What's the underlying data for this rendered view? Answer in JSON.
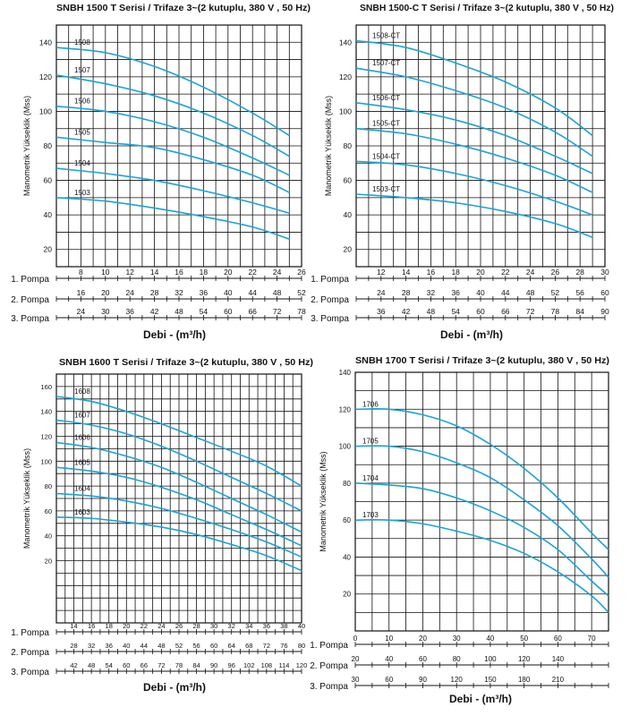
{
  "colors": {
    "curve": "#1aa3d6",
    "grid": "#111111",
    "text": "#111111"
  },
  "chart_data": [
    {
      "type": "line",
      "title": "SNBH 1500 T Serisi / Trifaze 3~(2 kutuplu, 380 V , 50 Hz)",
      "ylabel": "Manometrik Yükseklik (Mss)",
      "xlabel": "Debi - (m³/h)",
      "x_unit": "m³/h",
      "ylim": [
        10,
        150
      ],
      "y_ticks": [
        20,
        40,
        60,
        80,
        100,
        120,
        140
      ],
      "xlim": [
        6,
        26
      ],
      "grid": true,
      "pompa_labels": [
        "1. Pompa",
        "2. Pompa",
        "3. Pompa"
      ],
      "pompa_ticks": [
        [
          8,
          10,
          12,
          14,
          16,
          18,
          20,
          22,
          24,
          26
        ],
        [
          16,
          20,
          24,
          28,
          32,
          36,
          40,
          44,
          48,
          52
        ],
        [
          24,
          30,
          36,
          42,
          48,
          54,
          60,
          66,
          72,
          78
        ]
      ],
      "series": [
        {
          "name": "1508",
          "x": [
            6,
            10,
            14,
            18,
            22,
            25
          ],
          "y": [
            137,
            134,
            126,
            114,
            99,
            86
          ]
        },
        {
          "name": "1507",
          "x": [
            6,
            10,
            14,
            18,
            22,
            25
          ],
          "y": [
            121,
            116,
            109,
            99,
            86,
            74
          ]
        },
        {
          "name": "1506",
          "x": [
            6,
            10,
            14,
            18,
            22,
            25
          ],
          "y": [
            103,
            100,
            94,
            85,
            73,
            63
          ]
        },
        {
          "name": "1505",
          "x": [
            6,
            10,
            14,
            18,
            22,
            25
          ],
          "y": [
            85,
            82,
            79,
            72,
            63,
            53
          ]
        },
        {
          "name": "1504",
          "x": [
            6,
            10,
            14,
            18,
            22,
            25
          ],
          "y": [
            67,
            64,
            60,
            54,
            47,
            41
          ]
        },
        {
          "name": "1503",
          "x": [
            6,
            10,
            14,
            18,
            22,
            25
          ],
          "y": [
            50,
            48,
            44,
            39,
            33,
            26
          ]
        }
      ]
    },
    {
      "type": "line",
      "title": "SNBH 1500-C T Serisi / Trifaze 3~(2 kutuplu, 380 V , 50 Hz)",
      "ylabel": "Manometrik Yükseklik (Mss)",
      "xlabel": "Debi - (m³/h)",
      "x_unit": "m³/h",
      "ylim": [
        10,
        150
      ],
      "y_ticks": [
        20,
        40,
        60,
        80,
        100,
        120,
        140
      ],
      "xlim": [
        10,
        30
      ],
      "grid": true,
      "pompa_labels": [
        "1. Pompa",
        "2. Pompa",
        "3. Pompa"
      ],
      "pompa_ticks": [
        [
          12,
          14,
          16,
          18,
          20,
          22,
          24,
          26,
          28,
          30
        ],
        [
          24,
          28,
          32,
          36,
          40,
          44,
          48,
          52,
          56,
          60
        ],
        [
          36,
          42,
          48,
          54,
          60,
          66,
          72,
          78,
          84,
          90
        ]
      ],
      "series": [
        {
          "name": "1508-CT",
          "x": [
            10,
            14,
            18,
            22,
            26,
            29
          ],
          "y": [
            141,
            137,
            128,
            117,
            102,
            86
          ]
        },
        {
          "name": "1507-CT",
          "x": [
            10,
            14,
            18,
            22,
            26,
            29
          ],
          "y": [
            125,
            120,
            112,
            102,
            88,
            74
          ]
        },
        {
          "name": "1506-CT",
          "x": [
            10,
            14,
            18,
            22,
            26,
            29
          ],
          "y": [
            105,
            101,
            95,
            86,
            74,
            64
          ]
        },
        {
          "name": "1505-CT",
          "x": [
            10,
            14,
            18,
            22,
            26,
            29
          ],
          "y": [
            90,
            87,
            81,
            73,
            63,
            53
          ]
        },
        {
          "name": "1504-CT",
          "x": [
            10,
            14,
            18,
            22,
            26,
            29
          ],
          "y": [
            71,
            69,
            64,
            57,
            48,
            40
          ]
        },
        {
          "name": "1503-CT",
          "x": [
            10,
            14,
            18,
            22,
            26,
            29
          ],
          "y": [
            52,
            50,
            47,
            42,
            35,
            27
          ]
        }
      ]
    },
    {
      "type": "line",
      "title": "SNBH 1600 T Serisi / Trifaze 3~(2 kutuplu, 380 V , 50 Hz)",
      "ylabel": "Manometrik Yükseklik (Mss)",
      "xlabel": "Debi - (m³/h)",
      "x_unit": "m³/h",
      "ylim": [
        -30,
        170
      ],
      "y_ticks": [
        20,
        40,
        60,
        80,
        100,
        120,
        140,
        160
      ],
      "xlim": [
        12,
        40
      ],
      "grid": true,
      "pompa_labels": [
        "1. Pompa",
        "2. Pompa",
        "3. Pompa"
      ],
      "pompa_ticks": [
        [
          14,
          16,
          18,
          20,
          22,
          24,
          26,
          28,
          30,
          32,
          34,
          36,
          38,
          40
        ],
        [
          28,
          32,
          36,
          40,
          44,
          48,
          52,
          56,
          60,
          64,
          68,
          72,
          76,
          80
        ],
        [
          42,
          48,
          54,
          60,
          66,
          72,
          78,
          84,
          90,
          96,
          102,
          108,
          114,
          120
        ]
      ],
      "series": [
        {
          "name": "1608",
          "x": [
            12,
            16,
            20,
            24,
            28,
            32,
            36,
            40
          ],
          "y": [
            152,
            148,
            140,
            130,
            119,
            108,
            96,
            80
          ]
        },
        {
          "name": "1607",
          "x": [
            12,
            16,
            20,
            24,
            28,
            32,
            36,
            40
          ],
          "y": [
            133,
            129,
            122,
            112,
            100,
            87,
            74,
            60
          ]
        },
        {
          "name": "1606",
          "x": [
            12,
            16,
            20,
            24,
            28,
            32,
            36,
            40
          ],
          "y": [
            115,
            111,
            104,
            95,
            83,
            70,
            57,
            43
          ]
        },
        {
          "name": "1605",
          "x": [
            12,
            16,
            20,
            24,
            28,
            32,
            36,
            40
          ],
          "y": [
            95,
            92,
            87,
            79,
            69,
            57,
            45,
            32
          ]
        },
        {
          "name": "1604",
          "x": [
            12,
            16,
            20,
            24,
            28,
            32,
            36,
            40
          ],
          "y": [
            74,
            72,
            68,
            62,
            54,
            45,
            35,
            23
          ]
        },
        {
          "name": "1603",
          "x": [
            12,
            16,
            20,
            24,
            28,
            32,
            36,
            40
          ],
          "y": [
            55,
            54,
            51,
            47,
            41,
            33,
            24,
            12
          ]
        }
      ]
    },
    {
      "type": "line",
      "title": "SNBH 1700 T Serisi / Trifaze 3~(2 kutuplu, 380 V , 50 Hz)",
      "ylabel": "Manometrik Yükseklik (Mss)",
      "xlabel": "Debi - (m³/h)",
      "x_unit": "m³/h",
      "ylim": [
        0,
        140
      ],
      "y_ticks": [
        20,
        40,
        60,
        80,
        100,
        120,
        140
      ],
      "xlim": [
        0,
        75
      ],
      "grid": true,
      "pompa_labels": [
        "1. Pompa",
        "2. Pompa",
        "3. Pompa"
      ],
      "pompa_ticks": [
        [
          0,
          10,
          20,
          30,
          40,
          50,
          60,
          70
        ],
        [
          20,
          40,
          60,
          80,
          100,
          120,
          140
        ],
        [
          30,
          60,
          90,
          120,
          150,
          180,
          210
        ]
      ],
      "series": [
        {
          "name": "1706",
          "x": [
            0,
            10,
            20,
            30,
            40,
            50,
            60,
            70,
            75
          ],
          "y": [
            120,
            120,
            117,
            111,
            101,
            88,
            72,
            53,
            44
          ]
        },
        {
          "name": "1705",
          "x": [
            0,
            10,
            20,
            30,
            40,
            50,
            60,
            70,
            75
          ],
          "y": [
            100,
            100,
            97,
            91,
            83,
            71,
            57,
            39,
            29
          ]
        },
        {
          "name": "1704",
          "x": [
            0,
            10,
            20,
            30,
            40,
            50,
            60,
            70,
            75
          ],
          "y": [
            80,
            79,
            77,
            72,
            65,
            56,
            44,
            27,
            19
          ]
        },
        {
          "name": "1703",
          "x": [
            0,
            10,
            20,
            30,
            40,
            50,
            60,
            70,
            75
          ],
          "y": [
            60,
            60,
            58,
            54,
            49,
            42,
            32,
            19,
            10
          ]
        }
      ]
    }
  ]
}
